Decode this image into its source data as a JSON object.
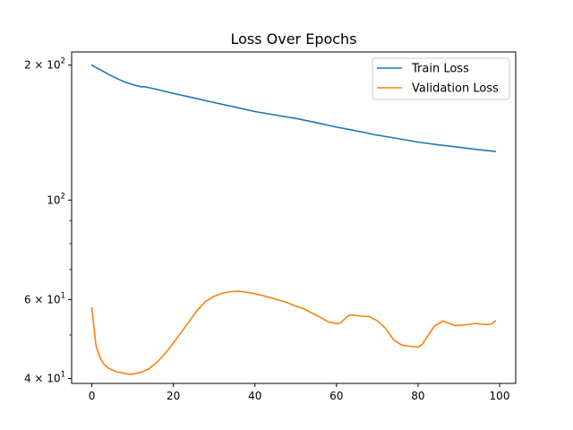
{
  "chart_data": {
    "type": "line",
    "title": "Loss Over Epochs",
    "xlabel": "",
    "ylabel": "",
    "xlim": [
      -4.95,
      103.95
    ],
    "ylim": [
      39,
      214
    ],
    "yscale": "log",
    "grid": false,
    "legend_position": "top-right",
    "x_ticks": [
      {
        "value": 0,
        "label": "0"
      },
      {
        "value": 20,
        "label": "20"
      },
      {
        "value": 40,
        "label": "40"
      },
      {
        "value": 60,
        "label": "60"
      },
      {
        "value": 80,
        "label": "80"
      },
      {
        "value": 100,
        "label": "100"
      }
    ],
    "y_major_ticks": [
      {
        "value": 40,
        "base": "4 × 10",
        "exp": "1"
      },
      {
        "value": 60,
        "base": "6 × 10",
        "exp": "1"
      },
      {
        "value": 100,
        "base": "10",
        "exp": "2"
      },
      {
        "value": 200,
        "base": "2 × 10",
        "exp": "2"
      }
    ],
    "y_minor_ticks": [
      50,
      70,
      80,
      90
    ],
    "series": [
      {
        "name": "Train Loss",
        "color": "#1f77b4",
        "points": [
          [
            0,
            200
          ],
          [
            2,
            195.5
          ],
          [
            4,
            191
          ],
          [
            6,
            187
          ],
          [
            8,
            183.5
          ],
          [
            10,
            181
          ],
          [
            12,
            179
          ],
          [
            13,
            179
          ],
          [
            16,
            176.5
          ],
          [
            20,
            173
          ],
          [
            25,
            169
          ],
          [
            30,
            165
          ],
          [
            35,
            161.3
          ],
          [
            40,
            157.6
          ],
          [
            45,
            154.8
          ],
          [
            50,
            152.1
          ],
          [
            55,
            148.9
          ],
          [
            60,
            145.5
          ],
          [
            65,
            142.6
          ],
          [
            70,
            139.6
          ],
          [
            75,
            137.2
          ],
          [
            80,
            134.7
          ],
          [
            85,
            132.8
          ],
          [
            90,
            131.2
          ],
          [
            95,
            129.5
          ],
          [
            99,
            128.4
          ]
        ]
      },
      {
        "name": "Validation Loss",
        "color": "#ff7f0e",
        "points": [
          [
            0,
            57.5
          ],
          [
            1,
            47.5
          ],
          [
            2,
            44.5
          ],
          [
            3,
            43.0
          ],
          [
            4,
            42.2
          ],
          [
            6,
            41.4
          ],
          [
            8,
            41.1
          ],
          [
            9,
            40.9
          ],
          [
            10,
            40.9
          ],
          [
            12,
            41.3
          ],
          [
            14,
            42.0
          ],
          [
            16,
            43.5
          ],
          [
            18,
            45.5
          ],
          [
            20,
            48.0
          ],
          [
            22,
            50.8
          ],
          [
            24,
            53.8
          ],
          [
            26,
            57.0
          ],
          [
            28,
            59.5
          ],
          [
            30,
            61.0
          ],
          [
            32,
            62.0
          ],
          [
            34,
            62.5
          ],
          [
            36,
            62.6
          ],
          [
            38,
            62.3
          ],
          [
            40,
            61.8
          ],
          [
            42,
            61.2
          ],
          [
            44,
            60.5
          ],
          [
            46,
            59.8
          ],
          [
            48,
            59.0
          ],
          [
            50,
            58.0
          ],
          [
            52,
            57.2
          ],
          [
            54,
            56.0
          ],
          [
            56,
            54.8
          ],
          [
            58,
            53.5
          ],
          [
            60,
            53.0
          ],
          [
            61,
            53.2
          ],
          [
            62,
            54.3
          ],
          [
            63,
            55.3
          ],
          [
            64,
            55.4
          ],
          [
            66,
            55.1
          ],
          [
            68,
            55.0
          ],
          [
            70,
            53.8
          ],
          [
            72,
            51.8
          ],
          [
            74,
            48.8
          ],
          [
            76,
            47.5
          ],
          [
            78,
            47.2
          ],
          [
            80,
            47.0
          ],
          [
            81,
            47.6
          ],
          [
            82,
            49.2
          ],
          [
            84,
            52.3
          ],
          [
            86,
            53.7
          ],
          [
            88,
            53.0
          ],
          [
            89,
            52.5
          ],
          [
            91,
            52.6
          ],
          [
            93,
            52.9
          ],
          [
            94,
            53.1
          ],
          [
            95,
            52.9
          ],
          [
            97,
            52.8
          ],
          [
            98,
            52.9
          ],
          [
            99,
            53.8
          ]
        ]
      }
    ]
  }
}
